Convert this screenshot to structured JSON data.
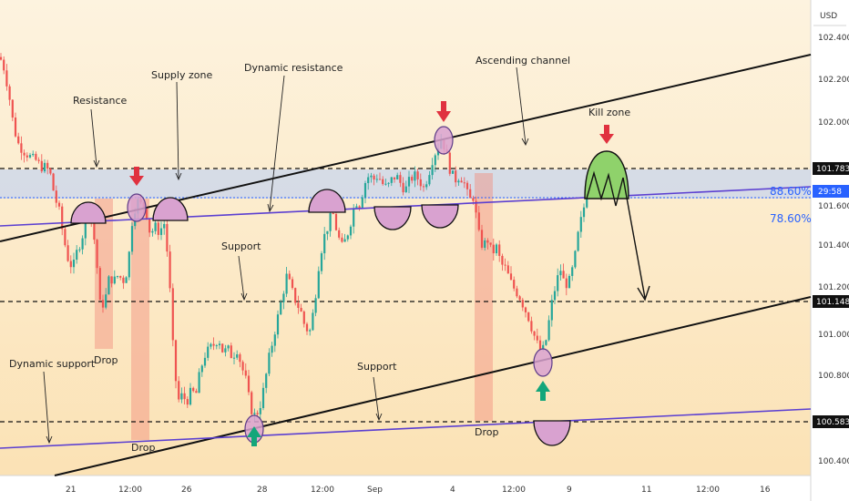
{
  "chart_data": {
    "type": "candlestick",
    "currency": "USD",
    "y_axis": {
      "ticks": [
        "102.400",
        "102.200",
        "102.000",
        "101.600",
        "101.400",
        "101.200",
        "101.000",
        "100.800",
        "100.400"
      ],
      "ylim": [
        100.3,
        102.55
      ]
    },
    "x_axis": {
      "ticks": [
        "21",
        "12:00",
        "26",
        "28",
        "12:00",
        "Sep",
        "4",
        "12:00",
        "9",
        "11",
        "12:00",
        "16"
      ]
    },
    "price_badges": [
      {
        "label": "101.783",
        "value": 101.783,
        "color": "#000000"
      },
      {
        "label": "29:58",
        "value": 101.64,
        "color": "#2962ff"
      },
      {
        "label": "101.148",
        "value": 101.148,
        "color": "#000000"
      },
      {
        "label": "100.583",
        "value": 100.583,
        "color": "#000000"
      }
    ],
    "horizontal_levels": [
      {
        "name": "Resistance",
        "value": 101.783
      },
      {
        "name": "Support",
        "value": 101.148
      },
      {
        "name": "Support",
        "value": 100.583
      }
    ],
    "fib_levels": [
      {
        "label": "88.60%",
        "value": 101.64
      },
      {
        "label": "78.60%",
        "value": 101.54
      }
    ],
    "supply_zone": {
      "low": 101.64,
      "high": 101.783
    },
    "annotations": [
      "Resistance",
      "Supply zone",
      "Dynamic resistance",
      "Ascending channel",
      "Kill zone",
      "Support",
      "Support",
      "Dynamic support",
      "Drop",
      "Drop",
      "Drop"
    ],
    "price_path": [
      [
        0,
        102.28
      ],
      [
        5,
        102.22
      ],
      [
        10,
        102.1
      ],
      [
        15,
        101.95
      ],
      [
        20,
        101.87
      ],
      [
        25,
        101.84
      ],
      [
        30,
        101.82
      ],
      [
        35,
        101.8
      ],
      [
        40,
        101.79
      ],
      [
        45,
        101.76
      ],
      [
        50,
        101.76
      ],
      [
        55,
        101.73
      ],
      [
        60,
        101.62
      ],
      [
        65,
        101.55
      ],
      [
        70,
        101.42
      ],
      [
        75,
        101.32
      ],
      [
        80,
        101.28
      ],
      [
        85,
        101.37
      ],
      [
        90,
        101.42
      ],
      [
        95,
        101.56
      ],
      [
        100,
        101.52
      ],
      [
        105,
        101.37
      ],
      [
        110,
        101.1
      ],
      [
        115,
        101.12
      ],
      [
        120,
        101.24
      ],
      [
        125,
        101.22
      ],
      [
        130,
        101.25
      ],
      [
        135,
        101.22
      ],
      [
        140,
        101.27
      ],
      [
        145,
        101.5
      ],
      [
        150,
        101.6
      ],
      [
        155,
        101.58
      ],
      [
        160,
        101.56
      ],
      [
        165,
        101.44
      ],
      [
        170,
        101.48
      ],
      [
        175,
        101.45
      ],
      [
        180,
        101.5
      ],
      [
        185,
        101.3
      ],
      [
        190,
        100.9
      ],
      [
        195,
        100.65
      ],
      [
        200,
        100.68
      ],
      [
        205,
        100.65
      ],
      [
        210,
        100.7
      ],
      [
        215,
        100.68
      ],
      [
        220,
        100.8
      ],
      [
        225,
        100.87
      ],
      [
        230,
        100.9
      ],
      [
        235,
        100.92
      ],
      [
        240,
        100.95
      ],
      [
        245,
        100.88
      ],
      [
        250,
        100.9
      ],
      [
        255,
        100.86
      ],
      [
        260,
        100.9
      ],
      [
        265,
        100.82
      ],
      [
        270,
        100.75
      ],
      [
        275,
        100.62
      ],
      [
        280,
        100.58
      ],
      [
        285,
        100.62
      ],
      [
        290,
        100.72
      ],
      [
        295,
        100.85
      ],
      [
        300,
        100.95
      ],
      [
        305,
        101.05
      ],
      [
        310,
        101.15
      ],
      [
        315,
        101.25
      ],
      [
        320,
        101.18
      ],
      [
        325,
        101.12
      ],
      [
        330,
        101.08
      ],
      [
        335,
        101.0
      ],
      [
        340,
        100.98
      ],
      [
        345,
        101.1
      ],
      [
        350,
        101.3
      ],
      [
        355,
        101.42
      ],
      [
        360,
        101.48
      ],
      [
        365,
        101.55
      ],
      [
        370,
        101.45
      ],
      [
        375,
        101.38
      ],
      [
        380,
        101.42
      ],
      [
        385,
        101.5
      ],
      [
        390,
        101.6
      ],
      [
        395,
        101.58
      ],
      [
        400,
        101.68
      ],
      [
        405,
        101.72
      ],
      [
        410,
        101.7
      ],
      [
        415,
        101.72
      ],
      [
        420,
        101.68
      ],
      [
        425,
        101.66
      ],
      [
        430,
        101.7
      ],
      [
        435,
        101.72
      ],
      [
        440,
        101.68
      ],
      [
        445,
        101.65
      ],
      [
        450,
        101.7
      ],
      [
        455,
        101.72
      ],
      [
        460,
        101.7
      ],
      [
        465,
        101.66
      ],
      [
        470,
        101.72
      ],
      [
        475,
        101.8
      ],
      [
        480,
        101.85
      ],
      [
        485,
        101.9
      ],
      [
        490,
        101.82
      ],
      [
        495,
        101.73
      ],
      [
        500,
        101.7
      ],
      [
        505,
        101.72
      ],
      [
        510,
        101.68
      ],
      [
        515,
        101.6
      ],
      [
        520,
        101.62
      ],
      [
        525,
        101.45
      ],
      [
        530,
        101.38
      ],
      [
        535,
        101.42
      ],
      [
        540,
        101.35
      ],
      [
        545,
        101.38
      ],
      [
        550,
        101.3
      ],
      [
        555,
        101.28
      ],
      [
        560,
        101.22
      ],
      [
        565,
        101.18
      ],
      [
        570,
        101.15
      ],
      [
        575,
        101.1
      ],
      [
        580,
        101.05
      ],
      [
        585,
        100.98
      ],
      [
        590,
        100.92
      ],
      [
        595,
        100.88
      ],
      [
        600,
        100.95
      ],
      [
        605,
        101.1
      ],
      [
        610,
        101.2
      ],
      [
        615,
        101.28
      ],
      [
        620,
        101.2
      ],
      [
        625,
        101.22
      ],
      [
        630,
        101.3
      ],
      [
        635,
        101.45
      ],
      [
        640,
        101.55
      ],
      [
        645,
        101.65
      ]
    ]
  }
}
